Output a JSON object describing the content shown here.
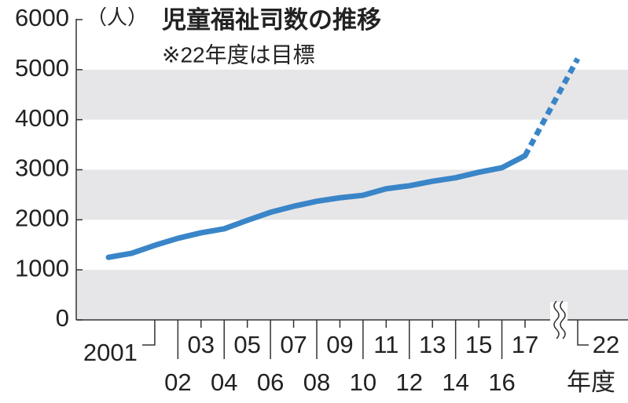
{
  "chart_data": {
    "type": "line",
    "title": "児童福祉司数の推移",
    "subtitle": "※22年度は目標",
    "y_unit": "（人）",
    "x_unit": "年度",
    "x": [
      1999,
      2000,
      2001,
      2002,
      2003,
      2004,
      2005,
      2006,
      2007,
      2008,
      2009,
      2010,
      2011,
      2012,
      2013,
      2014,
      2015,
      2016,
      2017,
      2022
    ],
    "series": [
      {
        "name": "児童福祉司数",
        "color": "#3a85c8",
        "values": [
          1250,
          1330,
          1490,
          1630,
          1740,
          1820,
          1990,
          2150,
          2270,
          2370,
          2440,
          2490,
          2620,
          2680,
          2770,
          2840,
          2950,
          3040,
          3280,
          5220
        ]
      }
    ],
    "xlim": [
      1999,
      2022
    ],
    "x_break": [
      2017,
      2022
    ],
    "xticks": [
      2001,
      {
        "value": 2002,
        "label": "02"
      },
      {
        "value": 2003,
        "label": "03"
      },
      {
        "value": 2004,
        "label": "04"
      },
      {
        "value": 2005,
        "label": "05"
      },
      {
        "value": 2006,
        "label": "06"
      },
      {
        "value": 2007,
        "label": "07"
      },
      {
        "value": 2008,
        "label": "08"
      },
      {
        "value": 2009,
        "label": "09"
      },
      {
        "value": 2010,
        "label": "10"
      },
      {
        "value": 2011,
        "label": "11"
      },
      {
        "value": 2012,
        "label": "12"
      },
      {
        "value": 2013,
        "label": "13"
      },
      {
        "value": 2014,
        "label": "14"
      },
      {
        "value": 2015,
        "label": "15"
      },
      {
        "value": 2016,
        "label": "16"
      },
      {
        "value": 2017,
        "label": "17"
      },
      {
        "value": 2022,
        "label": "22"
      }
    ],
    "ylim": [
      0,
      6000
    ],
    "yticks": [
      0,
      1000,
      2000,
      3000,
      4000,
      5000,
      6000
    ],
    "bands": true
  }
}
